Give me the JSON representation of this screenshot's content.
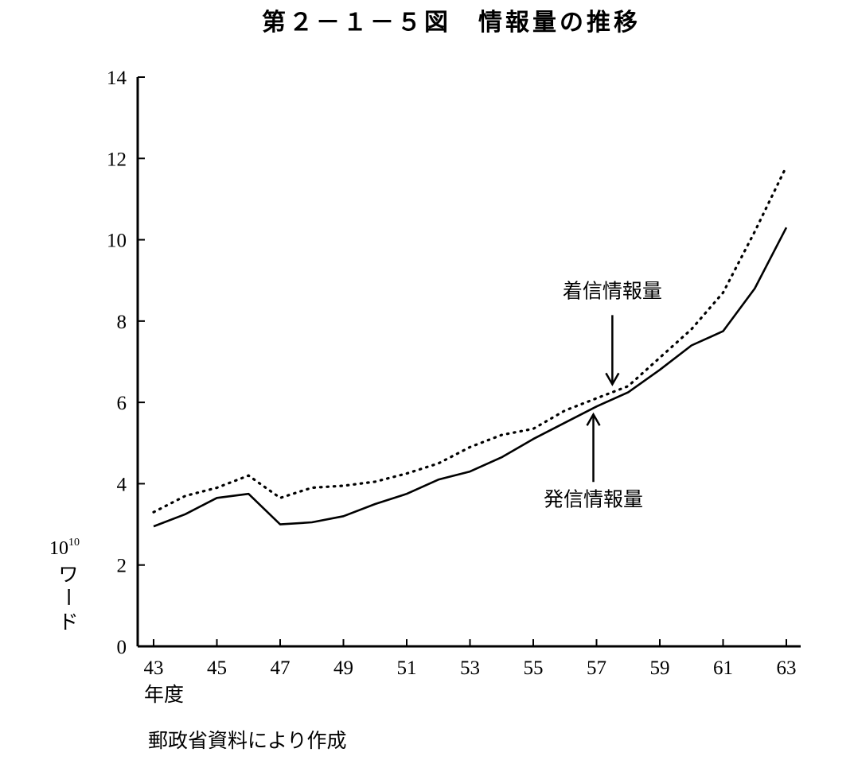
{
  "chart_data": {
    "type": "line",
    "title": "第２－１－５図　情報量の推移",
    "xlabel": "年度",
    "ylabel_exponent_base": "10",
    "ylabel_exponent": "10",
    "ylabel_unit": [
      "ワ",
      "ー",
      "ド"
    ],
    "ylim": [
      0,
      14
    ],
    "yticks": [
      0,
      2,
      4,
      6,
      8,
      10,
      12,
      14
    ],
    "xlim": [
      43,
      63
    ],
    "xticks": [
      43,
      45,
      47,
      49,
      51,
      53,
      55,
      57,
      59,
      61,
      63
    ],
    "x": [
      43,
      44,
      45,
      46,
      47,
      48,
      49,
      50,
      51,
      52,
      53,
      54,
      55,
      56,
      57,
      58,
      59,
      60,
      61,
      62,
      63
    ],
    "series": [
      {
        "name": "着信情報量",
        "style": "dotted",
        "values": [
          3.3,
          3.7,
          3.9,
          4.2,
          3.65,
          3.9,
          3.95,
          4.05,
          4.25,
          4.5,
          4.9,
          5.2,
          5.35,
          5.8,
          6.1,
          6.4,
          7.1,
          7.8,
          8.7,
          10.2,
          11.8
        ]
      },
      {
        "name": "発信情報量",
        "style": "solid",
        "values": [
          2.95,
          3.25,
          3.65,
          3.75,
          3.0,
          3.05,
          3.2,
          3.5,
          3.75,
          4.1,
          4.3,
          4.65,
          5.1,
          5.5,
          5.9,
          6.25,
          6.8,
          7.4,
          7.75,
          8.8,
          10.3
        ]
      }
    ],
    "annotations": [
      {
        "text": "着信情報量",
        "series": 0,
        "arrow_direction": "down",
        "target_x": 57.5
      },
      {
        "text": "発信情報量",
        "series": 1,
        "arrow_direction": "up",
        "target_x": 56.9
      }
    ],
    "source": "郵政省資料により作成",
    "grid": false,
    "legend": "none"
  }
}
